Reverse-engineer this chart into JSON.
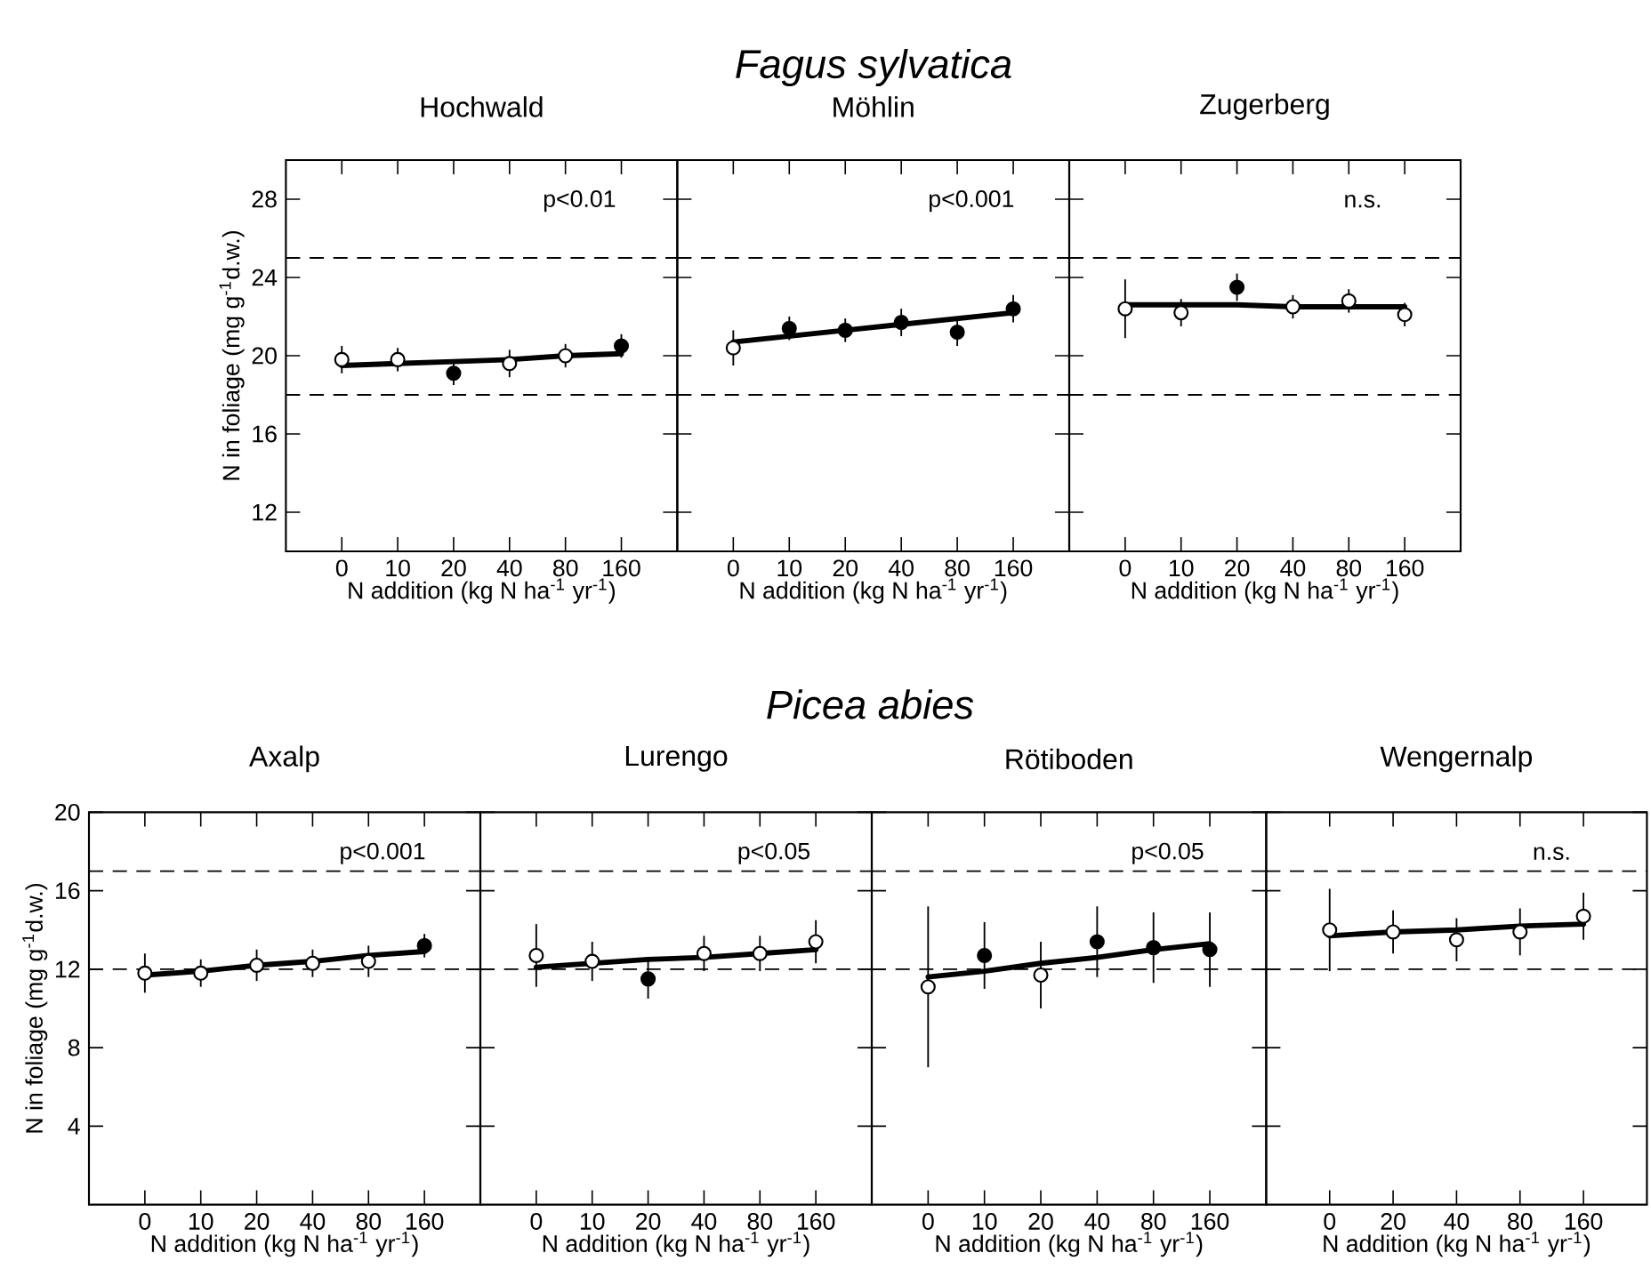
{
  "chart_data": [
    {
      "type": "other",
      "title": "Fagus sylvatica"
    },
    {
      "type": "scatter",
      "title": "Hochwald",
      "xlabel": "N addition (kg N ha$^{-1}$ yr$^{-1}$)",
      "ylabel": "N in foliage (mg g$^{-1}$d.w.)",
      "categories": [
        "0",
        "10",
        "20",
        "40",
        "80",
        "160"
      ],
      "ylim": [
        10,
        30
      ],
      "yticks": [
        12,
        16,
        20,
        24,
        28
      ],
      "annotations": [
        "p<0.01"
      ],
      "ref_lines": [
        {
          "axis": "y",
          "value": 25,
          "line_style": "dashed"
        },
        {
          "axis": "y",
          "value": 18,
          "line_style": "dashed"
        }
      ],
      "series": [
        {
          "type": "line",
          "color": "#000000",
          "values": [
            19.5,
            19.6,
            19.7,
            19.8,
            20.0,
            20.1
          ]
        },
        {
          "marker": "circle",
          "values": [
            19.8,
            19.8,
            19.1,
            19.6,
            20.0,
            20.5
          ],
          "errors": [
            0.7,
            0.6,
            0.6,
            0.7,
            0.6,
            0.6
          ],
          "colors": [
            "#ffffff",
            "#ffffff",
            "#000000",
            "#ffffff",
            "#ffffff",
            "#000000"
          ]
        }
      ]
    },
    {
      "type": "scatter",
      "title": "Möhlin",
      "xlabel": "N addition (kg N ha$^{-1}$ yr$^{-1}$)",
      "categories": [
        "0",
        "10",
        "20",
        "40",
        "80",
        "160"
      ],
      "ylim": [
        10,
        30
      ],
      "yticks": [
        12,
        16,
        20,
        24,
        28
      ],
      "tick_labels": "x",
      "annotations": [
        "p<0.001"
      ],
      "ref_lines": [
        {
          "axis": "y",
          "value": 25,
          "line_style": "dashed"
        },
        {
          "axis": "y",
          "value": 18,
          "line_style": "dashed"
        }
      ],
      "series": [
        {
          "type": "line",
          "color": "#000000",
          "values": [
            20.7,
            21.0,
            21.3,
            21.6,
            21.9,
            22.2
          ]
        },
        {
          "marker": "circle",
          "values": [
            20.4,
            21.4,
            21.3,
            21.7,
            21.2,
            22.4
          ],
          "errors": [
            0.9,
            0.6,
            0.6,
            0.7,
            0.7,
            0.7
          ],
          "colors": [
            "#ffffff",
            "#000000",
            "#000000",
            "#000000",
            "#000000",
            "#000000"
          ]
        }
      ]
    },
    {
      "type": "scatter",
      "title": "Zugerberg",
      "xlabel": "N addition (kg N ha$^{-1}$ yr$^{-1}$)",
      "categories": [
        "0",
        "10",
        "20",
        "40",
        "80",
        "160"
      ],
      "ylim": [
        10,
        30
      ],
      "yticks": [
        12,
        16,
        20,
        24,
        28
      ],
      "tick_labels": "x",
      "annotations": [
        "n.s."
      ],
      "ref_lines": [
        {
          "axis": "y",
          "value": 25,
          "line_style": "dashed"
        },
        {
          "axis": "y",
          "value": 18,
          "line_style": "dashed"
        }
      ],
      "series": [
        {
          "type": "line",
          "color": "#000000",
          "values": [
            22.6,
            22.6,
            22.6,
            22.5,
            22.5,
            22.5
          ]
        },
        {
          "marker": "circle",
          "values": [
            22.4,
            22.2,
            23.5,
            22.5,
            22.8,
            22.1
          ],
          "errors": [
            1.5,
            0.7,
            0.7,
            0.6,
            0.6,
            0.6
          ],
          "colors": [
            "#ffffff",
            "#ffffff",
            "#000000",
            "#ffffff",
            "#ffffff",
            "#ffffff"
          ]
        }
      ]
    },
    {
      "type": "other",
      "title": "Picea abies"
    },
    {
      "type": "scatter",
      "title": "Axalp",
      "xlabel": "N addition (kg N ha$^{-1}$ yr$^{-1}$)",
      "ylabel": "N in foliage (mg g$^{-1}$d.w.)",
      "categories": [
        "0",
        "10",
        "20",
        "40",
        "80",
        "160"
      ],
      "ylim": [
        0,
        20
      ],
      "yticks": [
        4,
        8,
        12,
        16,
        20
      ],
      "annotations": [
        "p<0.001"
      ],
      "ref_lines": [
        {
          "axis": "y",
          "value": 17,
          "line_style": "dashed"
        },
        {
          "axis": "y",
          "value": 12,
          "line_style": "dashed"
        }
      ],
      "series": [
        {
          "type": "line",
          "color": "#000000",
          "values": [
            11.7,
            11.9,
            12.2,
            12.4,
            12.7,
            12.9
          ]
        },
        {
          "marker": "circle",
          "values": [
            11.8,
            11.8,
            12.2,
            12.3,
            12.4,
            13.2
          ],
          "errors": [
            1.0,
            0.7,
            0.8,
            0.7,
            0.8,
            0.6
          ],
          "colors": [
            "#ffffff",
            "#ffffff",
            "#ffffff",
            "#ffffff",
            "#ffffff",
            "#000000"
          ]
        }
      ]
    },
    {
      "type": "scatter",
      "title": "Lurengo",
      "xlabel": "N addition (kg N ha$^{-1}$ yr$^{-1}$)",
      "categories": [
        "0",
        "10",
        "20",
        "40",
        "80",
        "160"
      ],
      "ylim": [
        0,
        20
      ],
      "yticks": [
        4,
        8,
        12,
        16,
        20
      ],
      "tick_labels": "x",
      "annotations": [
        "p<0.05"
      ],
      "ref_lines": [
        {
          "axis": "y",
          "value": 17,
          "line_style": "dashed"
        },
        {
          "axis": "y",
          "value": 12,
          "line_style": "dashed"
        }
      ],
      "series": [
        {
          "type": "line",
          "color": "#000000",
          "values": [
            12.1,
            12.3,
            12.5,
            12.6,
            12.8,
            13.0
          ]
        },
        {
          "marker": "circle",
          "values": [
            12.7,
            12.4,
            11.5,
            12.8,
            12.8,
            13.4
          ],
          "errors": [
            1.6,
            1.0,
            1.0,
            0.9,
            0.9,
            1.1
          ],
          "colors": [
            "#ffffff",
            "#ffffff",
            "#000000",
            "#ffffff",
            "#ffffff",
            "#ffffff"
          ]
        }
      ]
    },
    {
      "type": "scatter",
      "title": "Rötiboden",
      "xlabel": "N addition (kg N ha$^{-1}$ yr$^{-1}$)",
      "categories": [
        "0",
        "10",
        "20",
        "40",
        "80",
        "160"
      ],
      "ylim": [
        0,
        20
      ],
      "yticks": [
        4,
        8,
        12,
        16,
        20
      ],
      "tick_labels": "x",
      "annotations": [
        "p<0.05"
      ],
      "ref_lines": [
        {
          "axis": "y",
          "value": 17,
          "line_style": "dashed"
        },
        {
          "axis": "y",
          "value": 12,
          "line_style": "dashed"
        }
      ],
      "series": [
        {
          "type": "line",
          "color": "#000000",
          "values": [
            11.6,
            11.9,
            12.3,
            12.6,
            13.0,
            13.3
          ]
        },
        {
          "marker": "circle",
          "values": [
            11.1,
            12.7,
            11.7,
            13.4,
            13.1,
            13.0
          ],
          "errors": [
            4.1,
            1.7,
            1.7,
            1.8,
            1.8,
            1.9
          ],
          "colors": [
            "#ffffff",
            "#000000",
            "#ffffff",
            "#000000",
            "#000000",
            "#000000"
          ]
        }
      ]
    },
    {
      "type": "scatter",
      "title": "Wengernalp",
      "xlabel": "N addition (kg N ha$^{-1}$ yr$^{-1}$)",
      "categories": [
        "0",
        "20",
        "40",
        "80",
        "160"
      ],
      "ylim": [
        0,
        20
      ],
      "yticks": [
        4,
        8,
        12,
        16,
        20
      ],
      "tick_labels": "x",
      "annotations": [
        "n.s."
      ],
      "ref_lines": [
        {
          "axis": "y",
          "value": 17,
          "line_style": "dashed"
        },
        {
          "axis": "y",
          "value": 12,
          "line_style": "dashed"
        }
      ],
      "series": [
        {
          "type": "line",
          "color": "#000000",
          "values": [
            13.7,
            13.9,
            14.0,
            14.2,
            14.3
          ]
        },
        {
          "marker": "circle",
          "values": [
            14.0,
            13.9,
            13.5,
            13.9,
            14.7
          ],
          "errors": [
            2.1,
            1.1,
            1.1,
            1.2,
            1.2
          ],
          "colors": [
            "#ffffff",
            "#ffffff",
            "#ffffff",
            "#ffffff",
            "#ffffff"
          ]
        }
      ]
    }
  ]
}
